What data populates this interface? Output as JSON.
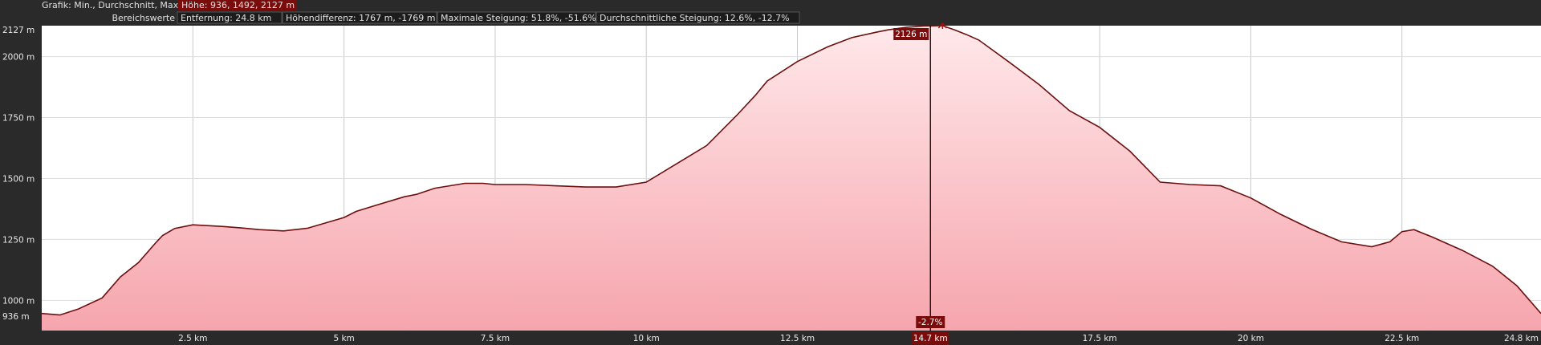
{
  "header": {
    "row1_label": "Grafik: Min., Durchschnitt, Max",
    "row1_value": "Höhe: 936, 1492, 2127 m",
    "row2_label": "Bereichswerte",
    "distance": "Entfernung: 24.8 km",
    "height_diff": "Höhendifferenz: 1767 m, -1769 m",
    "max_gradient": "Maximale Steigung: 51.8%, -51.6%",
    "avg_gradient": "Durchschnittliche Steigung: 12.6%, -12.7%"
  },
  "cursor": {
    "elevation_label": "2126 m",
    "gradient_label": "-2.7%",
    "distance_label": "14.7 km",
    "x_km": 14.7
  },
  "colors": {
    "background": "#2a2a2a",
    "plot_background": "#ffffff",
    "profile_line": "#6b0f0f",
    "fill_top": "#ffe8ea",
    "fill_bottom": "#f6a5ad",
    "highlight": "#a01010",
    "label_bg": "#7a0c0c"
  },
  "chart_data": {
    "type": "area",
    "title": "",
    "xlabel": "",
    "ylabel": "",
    "xlim": [
      0,
      24.8
    ],
    "ylim": [
      876,
      2127
    ],
    "x_ticks": [
      {
        "value": 2.5,
        "label": "2.5 km"
      },
      {
        "value": 5,
        "label": "5 km"
      },
      {
        "value": 7.5,
        "label": "7.5 km"
      },
      {
        "value": 10,
        "label": "10 km"
      },
      {
        "value": 12.5,
        "label": "12.5 km"
      },
      {
        "value": 17.5,
        "label": "17.5 km"
      },
      {
        "value": 20,
        "label": "20 km"
      },
      {
        "value": 22.5,
        "label": "22.5 km"
      }
    ],
    "x_end_label": "24.8 km",
    "y_ticks": [
      {
        "value": 2127,
        "label": "2127 m"
      },
      {
        "value": 2000,
        "label": "2000 m"
      },
      {
        "value": 1750,
        "label": "1750 m"
      },
      {
        "value": 1500,
        "label": "1500 m"
      },
      {
        "value": 1250,
        "label": "1250 m"
      },
      {
        "value": 1000,
        "label": "1000 m"
      },
      {
        "value": 936,
        "label": "936 m"
      }
    ],
    "grid": true,
    "series": [
      {
        "x": [
          0,
          0.3,
          0.6,
          1.0,
          1.3,
          1.6,
          1.9,
          2.0,
          2.2,
          2.5,
          3.0,
          3.3,
          3.6,
          4.0,
          4.4,
          5.0,
          5.2,
          5.5,
          6.0,
          6.2,
          6.5,
          7.0,
          7.3,
          7.5,
          8.0,
          8.5,
          9.0,
          9.5,
          10.0,
          10.5,
          11.0,
          11.5,
          11.8,
          12.0,
          12.5,
          13.0,
          13.4,
          13.8,
          14.0,
          14.3,
          14.6,
          14.7,
          14.9,
          15.1,
          15.3,
          15.5,
          16.0,
          16.5,
          17.0,
          17.5,
          18.0,
          18.5,
          19.0,
          19.5,
          20.0,
          20.5,
          21.0,
          21.5,
          22.0,
          22.3,
          22.5,
          22.7,
          23.0,
          23.5,
          24.0,
          24.4,
          24.8
        ],
        "y": [
          946,
          940,
          964,
          1010,
          1096,
          1155,
          1240,
          1266,
          1295,
          1310,
          1303,
          1297,
          1290,
          1285,
          1296,
          1340,
          1365,
          1388,
          1425,
          1435,
          1460,
          1480,
          1480,
          1475,
          1475,
          1470,
          1465,
          1465,
          1485,
          1560,
          1635,
          1760,
          1840,
          1900,
          1980,
          2040,
          2078,
          2100,
          2110,
          2120,
          2126,
          2126,
          2127,
          2110,
          2090,
          2068,
          1978,
          1885,
          1778,
          1710,
          1612,
          1485,
          1475,
          1470,
          1420,
          1352,
          1292,
          1240,
          1220,
          1240,
          1282,
          1290,
          1260,
          1205,
          1140,
          1060,
          946
        ]
      }
    ]
  }
}
